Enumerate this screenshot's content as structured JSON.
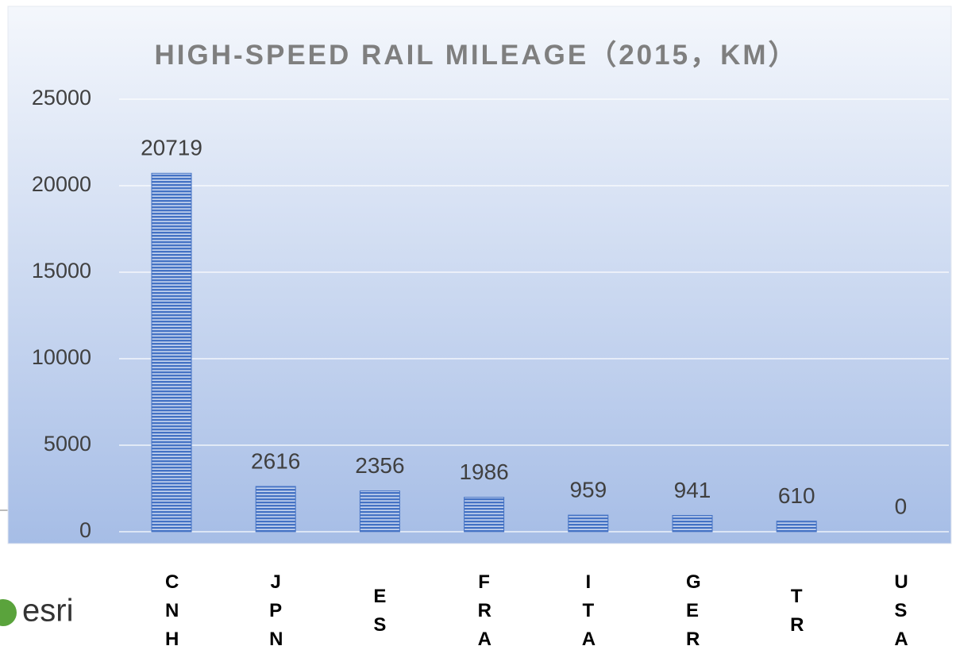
{
  "chart_data": {
    "type": "bar",
    "title": "HIGH-SPEED RAIL MILEAGE（2015，KM）",
    "categories": [
      "CNH",
      "JPN",
      "ES",
      "FRA",
      "ITA",
      "GER",
      "TR",
      "USA"
    ],
    "values": [
      20719,
      2616,
      2356,
      1986,
      959,
      941,
      610,
      0
    ],
    "color": "#4472c4",
    "ylim": [
      0,
      25000
    ],
    "yticks": [
      0,
      5000,
      10000,
      15000,
      20000,
      25000
    ],
    "grid": true
  },
  "logo_text": "esri"
}
